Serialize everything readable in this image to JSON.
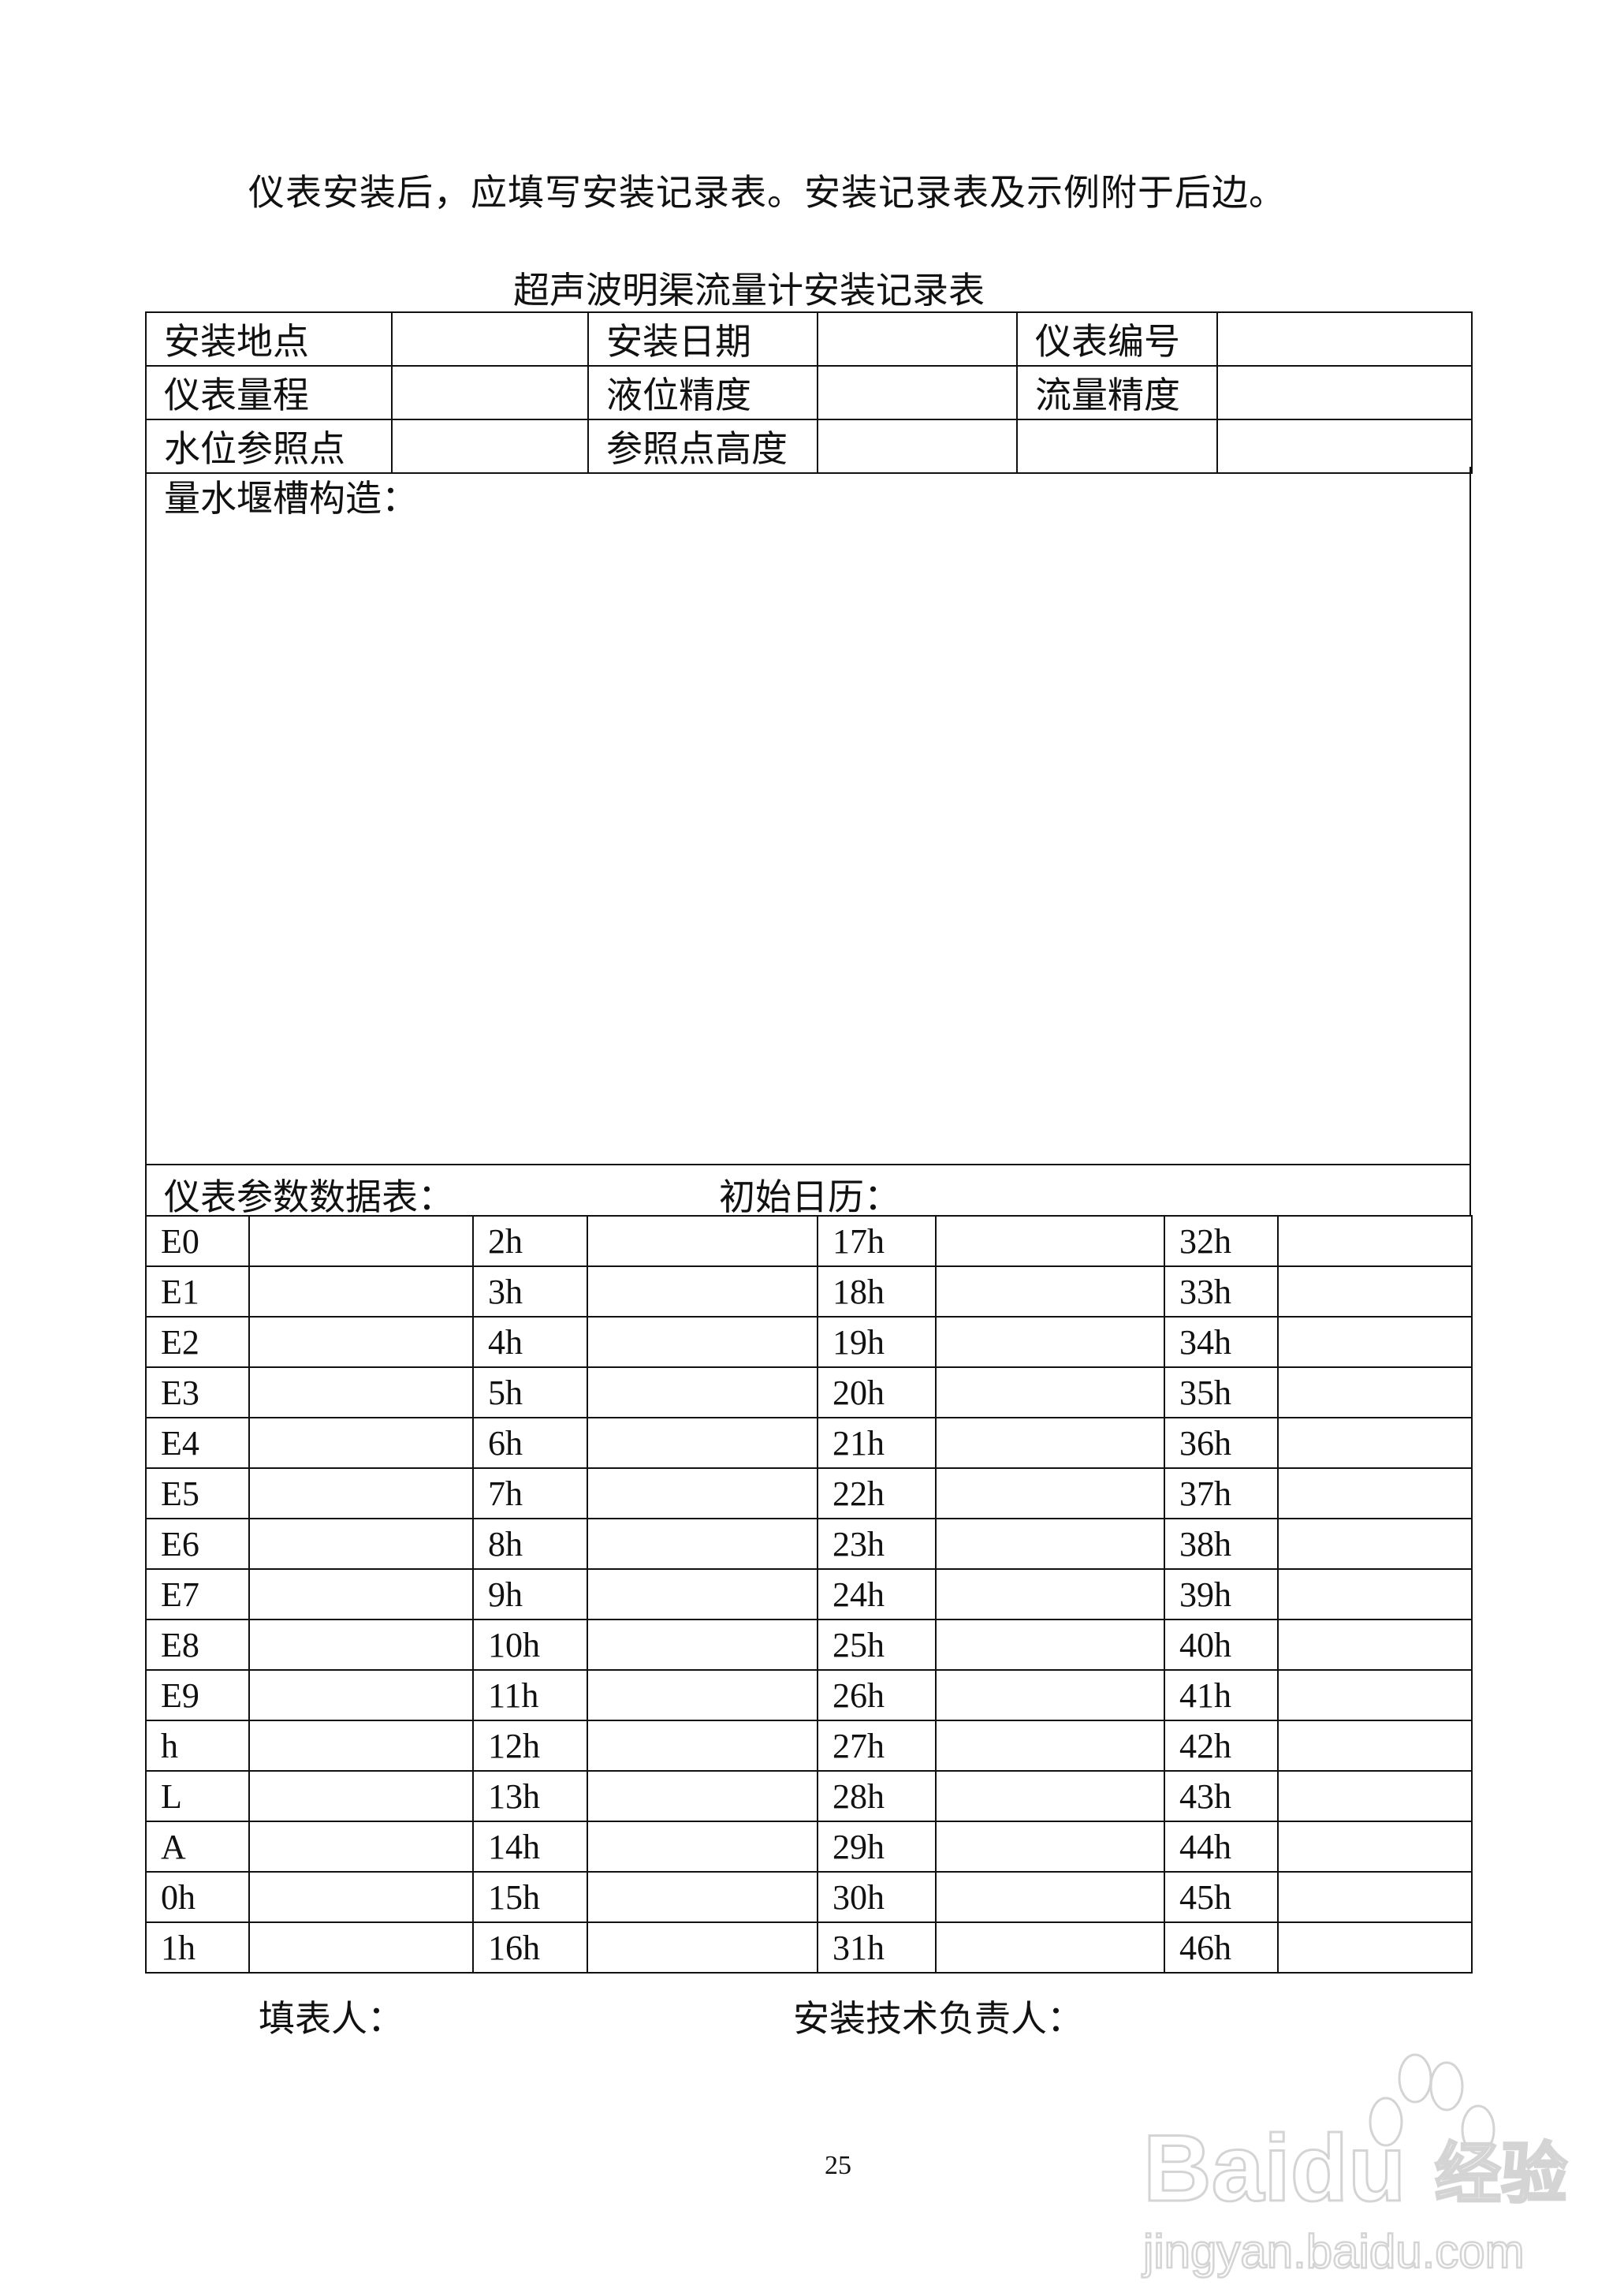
{
  "intro": "仪表安装后，应填写安装记录表。安装记录表及示例附于后边。",
  "title": "超声波明渠流量计安装记录表",
  "info_rows": [
    [
      "安装地点",
      "",
      "安装日期",
      "",
      "仪表编号",
      ""
    ],
    [
      "仪表量程",
      "",
      "液位精度",
      "",
      "流量精度",
      ""
    ],
    [
      "水位参照点",
      "",
      "参照点高度",
      "",
      "",
      ""
    ]
  ],
  "structure_label": "量水堰槽构造：",
  "params_label": "仪表参数数据表：",
  "calendar_label": "初始日历：",
  "param_rows": [
    [
      "E0",
      "2h",
      "17h",
      "32h"
    ],
    [
      "E1",
      "3h",
      "18h",
      "33h"
    ],
    [
      "E2",
      "4h",
      "19h",
      "34h"
    ],
    [
      "E3",
      "5h",
      "20h",
      "35h"
    ],
    [
      "E4",
      "6h",
      "21h",
      "36h"
    ],
    [
      "E5",
      "7h",
      "22h",
      "37h"
    ],
    [
      "E6",
      "8h",
      "23h",
      "38h"
    ],
    [
      "E7",
      "9h",
      "24h",
      "39h"
    ],
    [
      "E8",
      "10h",
      "25h",
      "40h"
    ],
    [
      "E9",
      "11h",
      "26h",
      "41h"
    ],
    [
      "h",
      "12h",
      "27h",
      "42h"
    ],
    [
      "L",
      "13h",
      "28h",
      "43h"
    ],
    [
      "A",
      "14h",
      "29h",
      "44h"
    ],
    [
      "0h",
      "15h",
      "30h",
      "45h"
    ],
    [
      "1h",
      "16h",
      "31h",
      "46h"
    ]
  ],
  "footer": {
    "filler": "填表人：",
    "tech_lead": "安装技术负责人："
  },
  "page_number": "25",
  "watermark": {
    "brand": "Baidu",
    "cn": "经验",
    "url": "jingyan.baidu.com",
    "color": "#d8d8d8"
  }
}
